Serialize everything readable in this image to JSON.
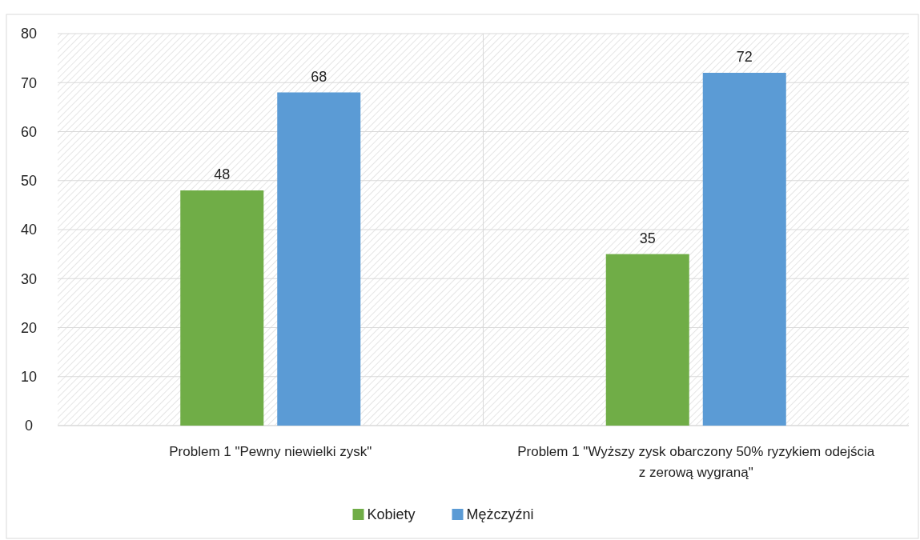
{
  "chart_data": {
    "type": "bar",
    "categories": [
      "Problem 1 \"Pewny niewielki zysk\"",
      "Problem 1 \"Wyższy zysk obarczony 50% ryzykiem odejścia z zerową wygraną\""
    ],
    "series": [
      {
        "name": "Kobiety",
        "color": "#70ad47",
        "values": [
          48,
          35
        ]
      },
      {
        "name": "Mężczyźni",
        "color": "#5b9bd5",
        "values": [
          68,
          72
        ]
      }
    ],
    "ylim": [
      0,
      80
    ],
    "yticks": [
      0,
      10,
      20,
      30,
      40,
      50,
      60,
      70,
      80
    ],
    "grid": "y",
    "data_labels": true,
    "legend": "bottom"
  }
}
